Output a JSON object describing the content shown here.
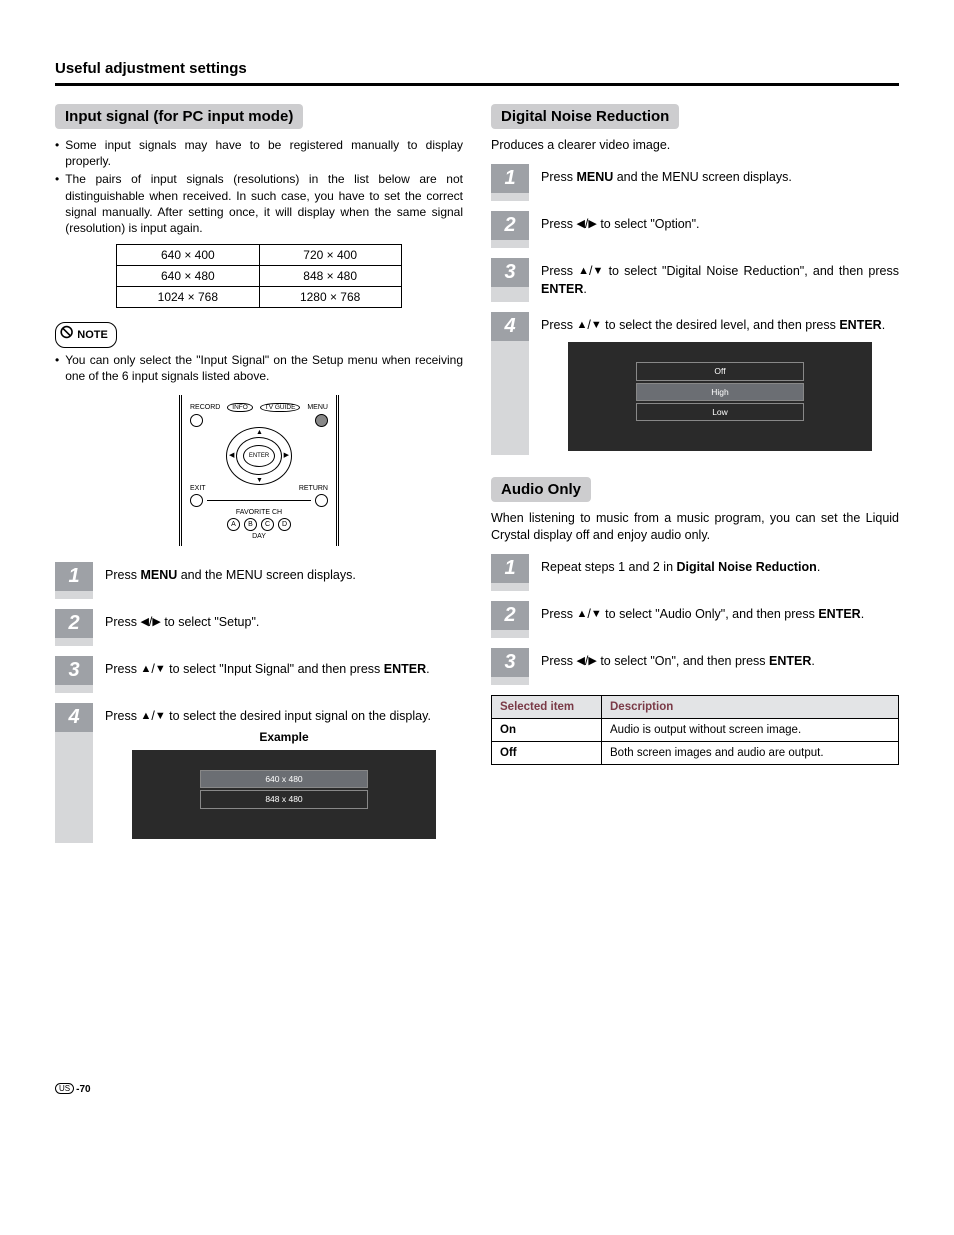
{
  "section_header": "Useful adjustment settings",
  "left": {
    "heading": "Input signal (for PC input mode)",
    "bullets": [
      "Some input signals may have to be registered manually to display properly.",
      "The pairs of input signals (resolutions) in the list below are not distinguishable when received. In such case, you have to set the correct signal manually. After setting once, it will display when the same signal (resolution) is input again."
    ],
    "res_table": [
      [
        "640 × 400",
        "720 × 400"
      ],
      [
        "640 × 480",
        "848 × 480"
      ],
      [
        "1024 × 768",
        "1280 × 768"
      ]
    ],
    "note_label": "NOTE",
    "note_bullet": "You can only select the \"Input Signal\" on the Setup menu when receiving one of the 6 input signals listed above.",
    "remote_labels": {
      "record": "RECORD",
      "info": "INFO",
      "tvguide": "TV GUIDE",
      "menu": "MENU",
      "enter": "ENTER",
      "exit": "EXIT",
      "return": "RETURN",
      "fav": "FAVORITE CH",
      "a": "A",
      "b": "B",
      "c": "C",
      "d": "D",
      "day": "DAY"
    },
    "steps": [
      {
        "html": "Press <b>MENU</b> and the MENU screen displays."
      },
      {
        "html": "Press <span class='tri'>◀</span>/<span class='tri'>▶</span> to select \"Setup\"."
      },
      {
        "html": "Press <span class='tri'>▲</span>/<span class='tri'>▼</span> to select \"Input Signal\" and then press <b>ENTER</b>."
      },
      {
        "html": "Press <span class='tri'>▲</span>/<span class='tri'>▼</span> to select the desired input signal on the display."
      }
    ],
    "example_label": "Example",
    "example_options": [
      {
        "label": "640 x 480",
        "selected": true
      },
      {
        "label": "848 x 480",
        "selected": false
      }
    ]
  },
  "right_dnr": {
    "heading": "Digital Noise Reduction",
    "intro": "Produces a clearer video image.",
    "steps": [
      {
        "html": "Press <b>MENU</b> and the MENU screen displays."
      },
      {
        "html": "Press <span class='tri'>◀</span>/<span class='tri'>▶</span> to select \"Option\"."
      },
      {
        "html": "Press <span class='tri'>▲</span>/<span class='tri'>▼</span> to select \"Digital Noise Reduction\", and then press <b>ENTER</b>."
      },
      {
        "html": "Press <span class='tri'>▲</span>/<span class='tri'>▼</span> to select the desired level, and then press <b>ENTER</b>."
      }
    ],
    "screen_options": [
      {
        "label": "Off",
        "selected": false
      },
      {
        "label": "High",
        "selected": true
      },
      {
        "label": "Low",
        "selected": false
      }
    ]
  },
  "right_audio": {
    "heading": "Audio Only",
    "intro": "When listening to music from a music program, you can set the Liquid Crystal display off and enjoy audio only.",
    "steps": [
      {
        "html": "Repeat steps 1 and 2 in <b>Digital Noise Reduction</b>."
      },
      {
        "html": "Press <span class='tri'>▲</span>/<span class='tri'>▼</span> to select \"Audio Only\", and then press <b>ENTER</b>."
      },
      {
        "html": "Press <span class='tri'>◀</span>/<span class='tri'>▶</span> to select \"On\", and then press <b>ENTER</b>."
      }
    ],
    "table": {
      "headers": [
        "Selected item",
        "Description"
      ],
      "rows": [
        [
          "On",
          "Audio is output without screen image."
        ],
        [
          "Off",
          "Both screen images and audio are output."
        ]
      ]
    }
  },
  "footer": {
    "region": "US",
    "page": "-70"
  },
  "colors": {
    "step_num_bg": "#9ea1a6",
    "step_tail_bg": "#d6d7d9",
    "h2_bg": "#cdcdcf",
    "screen_bg": "#2a2a2a",
    "screen_sel_bg": "#6b6e73",
    "table_header_bg": "#e3e4e6",
    "table_header_fg": "#7a3a47"
  }
}
